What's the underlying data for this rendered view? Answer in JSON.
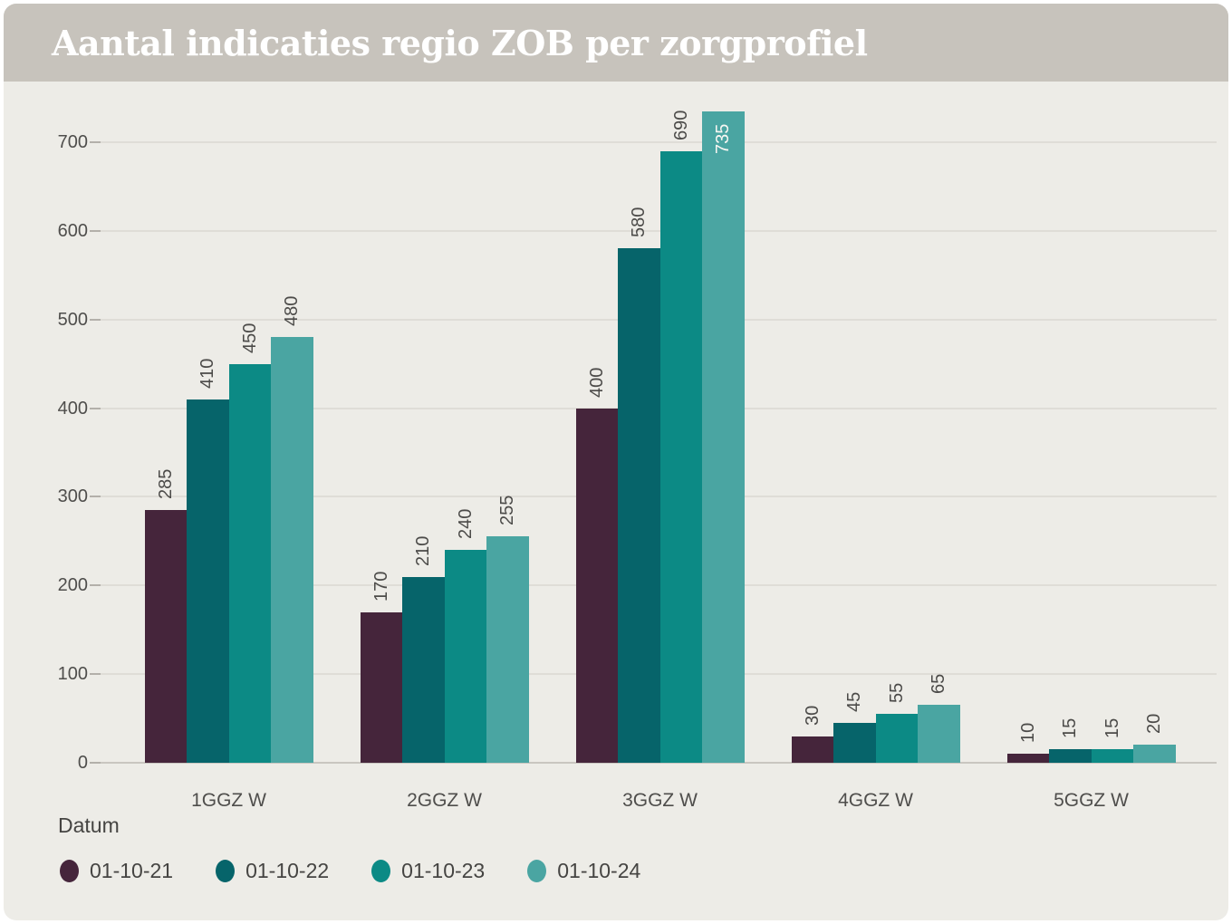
{
  "header": {
    "title": "Aantal indicaties regio ZOB per zorgprofiel"
  },
  "chart_data": {
    "type": "bar",
    "title": "Aantal indicaties regio ZOB per zorgprofiel",
    "categories": [
      "1GGZ W",
      "2GGZ W",
      "3GGZ W",
      "4GGZ W",
      "5GGZ W"
    ],
    "series": [
      {
        "name": "01-10-21",
        "color": "#45253b",
        "values": [
          285,
          170,
          400,
          30,
          10
        ]
      },
      {
        "name": "01-10-22",
        "color": "#06646a",
        "values": [
          410,
          210,
          580,
          45,
          15
        ]
      },
      {
        "name": "01-10-23",
        "color": "#0c8a85",
        "values": [
          450,
          240,
          690,
          55,
          15
        ]
      },
      {
        "name": "01-10-24",
        "color": "#4aa5a2",
        "values": [
          480,
          255,
          735,
          65,
          20
        ]
      }
    ],
    "xlabel": "",
    "ylabel": "",
    "ylim": [
      0,
      750
    ],
    "yticks": [
      0,
      100,
      200,
      300,
      400,
      500,
      600,
      700
    ],
    "grid": true,
    "bar_labels": true,
    "bar_label_rotation": 90,
    "legend_title": "Datum",
    "legend_position": "bottom-left"
  },
  "legend": {
    "label": "Datum"
  },
  "colors": {
    "header_bg": "#c7c3bc",
    "chart_bg": "#edece7",
    "title_text": "#ffffff",
    "axis_text": "#4f4e4c",
    "gridline": "#dfddd7",
    "baseline": "#c9c6c0",
    "tick": "#b3b0aa",
    "value_label": "#4c4b49",
    "value_label_inside": "#f7f6f2",
    "legend_text": "#454442"
  }
}
